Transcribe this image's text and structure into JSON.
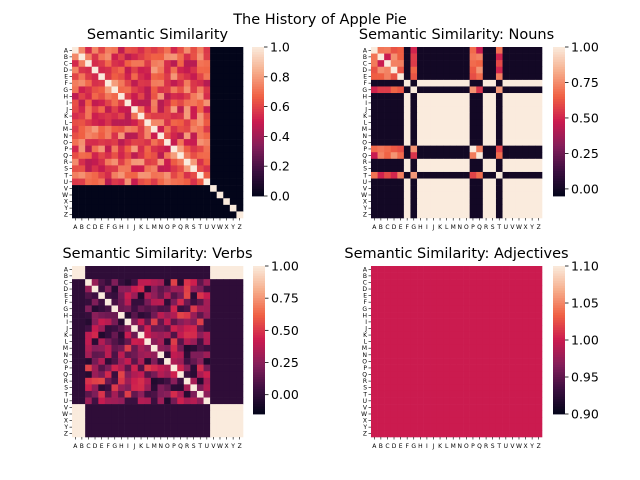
{
  "figure": {
    "suptitle": "The History of Apple Pie",
    "colormap": "rocket",
    "colormap_stops": [
      "#03051a",
      "#3b0f40",
      "#841e5a",
      "#cb1b4f",
      "#f06043",
      "#f6ad8b",
      "#faebdd"
    ]
  },
  "chart_data": [
    {
      "type": "heatmap",
      "title": "Semantic Similarity",
      "labels": [
        "A",
        "B",
        "C",
        "D",
        "E",
        "F",
        "G",
        "H",
        "I",
        "J",
        "K",
        "L",
        "M",
        "N",
        "O",
        "P",
        "Q",
        "R",
        "S",
        "T",
        "U",
        "V",
        "W",
        "X",
        "Y",
        "Z"
      ],
      "colorbar": {
        "vmin": 0.0,
        "vmax": 1.0,
        "ticks": [
          "0.0",
          "0.2",
          "0.4",
          "0.6",
          "0.8",
          "1.0"
        ],
        "tick_values": [
          0.0,
          0.2,
          0.4,
          0.6,
          0.8,
          1.0
        ]
      },
      "structure": {
        "active_block_end": "U",
        "diagonal": 1.0,
        "inactive_value": 0.0,
        "inactive_diagonal": 1.0,
        "offdiag_range": [
          0.45,
          0.8
        ]
      }
    },
    {
      "type": "heatmap",
      "title": "Semantic Similarity: Nouns",
      "labels": [
        "A",
        "B",
        "C",
        "D",
        "E",
        "F",
        "G",
        "H",
        "I",
        "J",
        "K",
        "L",
        "M",
        "N",
        "O",
        "P",
        "Q",
        "R",
        "S",
        "T",
        "U",
        "V",
        "W",
        "X",
        "Y",
        "Z"
      ],
      "colorbar": {
        "vmin": -0.05,
        "vmax": 1.0,
        "ticks": [
          "0.00",
          "0.25",
          "0.50",
          "0.75",
          "1.00"
        ],
        "tick_values": [
          0.0,
          0.25,
          0.5,
          0.75,
          1.0
        ]
      },
      "structure": {
        "active_words": [
          "A",
          "B",
          "C",
          "D",
          "E",
          "G",
          "P",
          "Q",
          "T"
        ],
        "diagonal": 1.0,
        "inactive_value": 1.0,
        "cross_value": 0.0,
        "offdiag_range": [
          0.45,
          0.8
        ]
      }
    },
    {
      "type": "heatmap",
      "title": "Semantic Similarity: Verbs",
      "labels": [
        "A",
        "B",
        "C",
        "D",
        "E",
        "F",
        "G",
        "H",
        "I",
        "J",
        "K",
        "L",
        "M",
        "N",
        "O",
        "P",
        "Q",
        "R",
        "S",
        "T",
        "U",
        "V",
        "W",
        "X",
        "Y",
        "Z"
      ],
      "colorbar": {
        "vmin": -0.15,
        "vmax": 1.0,
        "ticks": [
          "0.00",
          "0.25",
          "0.50",
          "0.75",
          "1.00"
        ],
        "tick_values": [
          0.0,
          0.25,
          0.5,
          0.75,
          1.0
        ]
      },
      "structure": {
        "active_range": [
          "C",
          "U"
        ],
        "diagonal": 1.0,
        "inactive_value": 1.0,
        "cross_value": 0.0,
        "offdiag_range": [
          -0.05,
          0.55
        ]
      }
    },
    {
      "type": "heatmap",
      "title": "Semantic Similarity: Adjectives",
      "labels": [
        "A",
        "B",
        "C",
        "D",
        "E",
        "F",
        "G",
        "H",
        "I",
        "J",
        "K",
        "L",
        "M",
        "N",
        "O",
        "P",
        "Q",
        "R",
        "S",
        "T",
        "U",
        "V",
        "W",
        "X",
        "Y",
        "Z"
      ],
      "colorbar": {
        "vmin": 0.9,
        "vmax": 1.1,
        "ticks": [
          "0.90",
          "0.95",
          "1.00",
          "1.05",
          "1.10"
        ],
        "tick_values": [
          0.9,
          0.95,
          1.0,
          1.05,
          1.1
        ]
      },
      "structure": {
        "uniform_value": 1.0
      }
    }
  ]
}
